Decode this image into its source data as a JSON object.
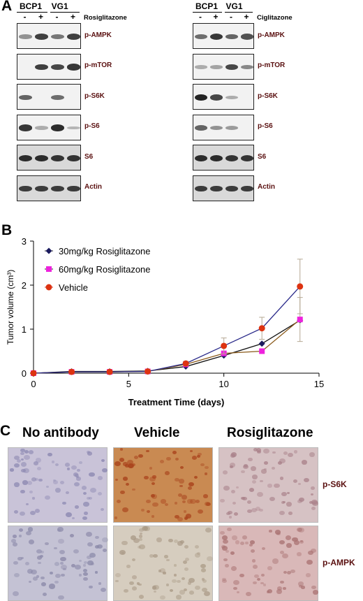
{
  "panel_a": {
    "letter": "A",
    "left": {
      "cell_lines": [
        "BCP1",
        "VG1"
      ],
      "treatment": "Rosiglitazone",
      "signs": [
        "-",
        "+",
        "-",
        "+"
      ],
      "blots": [
        {
          "label": "p-AMPK",
          "levels": [
            0.35,
            0.8,
            0.5,
            0.8
          ]
        },
        {
          "label": "p-mTOR",
          "levels": [
            0,
            0.8,
            0.75,
            0.85
          ]
        },
        {
          "label": "p-S6K",
          "levels": [
            0.6,
            0,
            0.55,
            0
          ]
        },
        {
          "label": "p-S6",
          "levels": [
            0.85,
            0.2,
            0.9,
            0.15
          ]
        },
        {
          "label": "S6",
          "levels": [
            0.9,
            0.9,
            0.85,
            0.85
          ]
        },
        {
          "label": "Actin",
          "levels": [
            0.8,
            0.8,
            0.8,
            0.8
          ]
        }
      ]
    },
    "right": {
      "cell_lines": [
        "BCP1",
        "VG1"
      ],
      "treatment": "Ciglitazone",
      "signs": [
        "-",
        "+",
        "-",
        "+"
      ],
      "blots": [
        {
          "label": "p-AMPK",
          "levels": [
            0.55,
            0.85,
            0.6,
            0.7
          ]
        },
        {
          "label": "p-mTOR",
          "levels": [
            0.2,
            0.25,
            0.75,
            0.4
          ]
        },
        {
          "label": "p-S6K",
          "levels": [
            0.95,
            0.75,
            0.2,
            0
          ]
        },
        {
          "label": "p-S6",
          "levels": [
            0.6,
            0.35,
            0.3,
            0
          ]
        },
        {
          "label": "S6",
          "levels": [
            0.9,
            0.9,
            0.85,
            0.85
          ]
        },
        {
          "label": "Actin",
          "levels": [
            0.8,
            0.8,
            0.8,
            0.8
          ]
        }
      ]
    }
  },
  "chart_data": {
    "type": "line",
    "panel_letter": "B",
    "xlabel": "Treatment Time (days)",
    "ylabel": "Tumor volume (cm³)",
    "xlim": [
      0,
      15
    ],
    "ylim": [
      0,
      3
    ],
    "xticks": [
      0,
      5,
      10,
      15
    ],
    "yticks": [
      0,
      1,
      2,
      3
    ],
    "grid": false,
    "legend_position": "top-left",
    "series": [
      {
        "name": "30mg/kg Rosiglitazone",
        "color": "#1a1a5e",
        "marker": "diamond",
        "x": [
          0,
          2,
          4,
          6,
          8,
          10,
          12,
          14
        ],
        "y": [
          0,
          0.04,
          0.04,
          0.05,
          0.15,
          0.4,
          0.67,
          1.2
        ],
        "err": [
          0,
          0,
          0,
          0,
          0,
          0,
          0,
          0
        ]
      },
      {
        "name": "60mg/kg Rosiglitazone",
        "color": "#ee22dd",
        "marker": "square",
        "x": [
          0,
          2,
          4,
          6,
          8,
          10,
          12,
          14
        ],
        "y": [
          0,
          0.03,
          0.03,
          0.04,
          0.2,
          0.45,
          0.5,
          1.22
        ],
        "err": [
          0,
          0,
          0,
          0,
          0,
          0,
          0,
          0.5
        ]
      },
      {
        "name": "Vehicle",
        "color": "#dd3311",
        "marker": "circle",
        "x": [
          0,
          2,
          4,
          6,
          8,
          10,
          12,
          14
        ],
        "y": [
          0,
          0.03,
          0.03,
          0.04,
          0.22,
          0.62,
          1.02,
          1.97
        ],
        "err": [
          0,
          0,
          0,
          0,
          0.05,
          0.18,
          0.25,
          0.62
        ]
      }
    ]
  },
  "panel_c": {
    "letter": "C",
    "columns": [
      "No antibody",
      "Vehicle",
      "Rosiglitazone"
    ],
    "rows": [
      "p-S6K",
      "p-AMPK"
    ],
    "tints": [
      [
        "#c9c3d8",
        "#c98a52",
        "#d6c2c4"
      ],
      [
        "#c4c2d4",
        "#d6cdbf",
        "#d9b8b8"
      ]
    ],
    "dots": [
      [
        "#8a86b0",
        "#a8401a",
        "#a87f88"
      ],
      [
        "#8a88a8",
        "#a89884",
        "#a87070"
      ]
    ]
  }
}
